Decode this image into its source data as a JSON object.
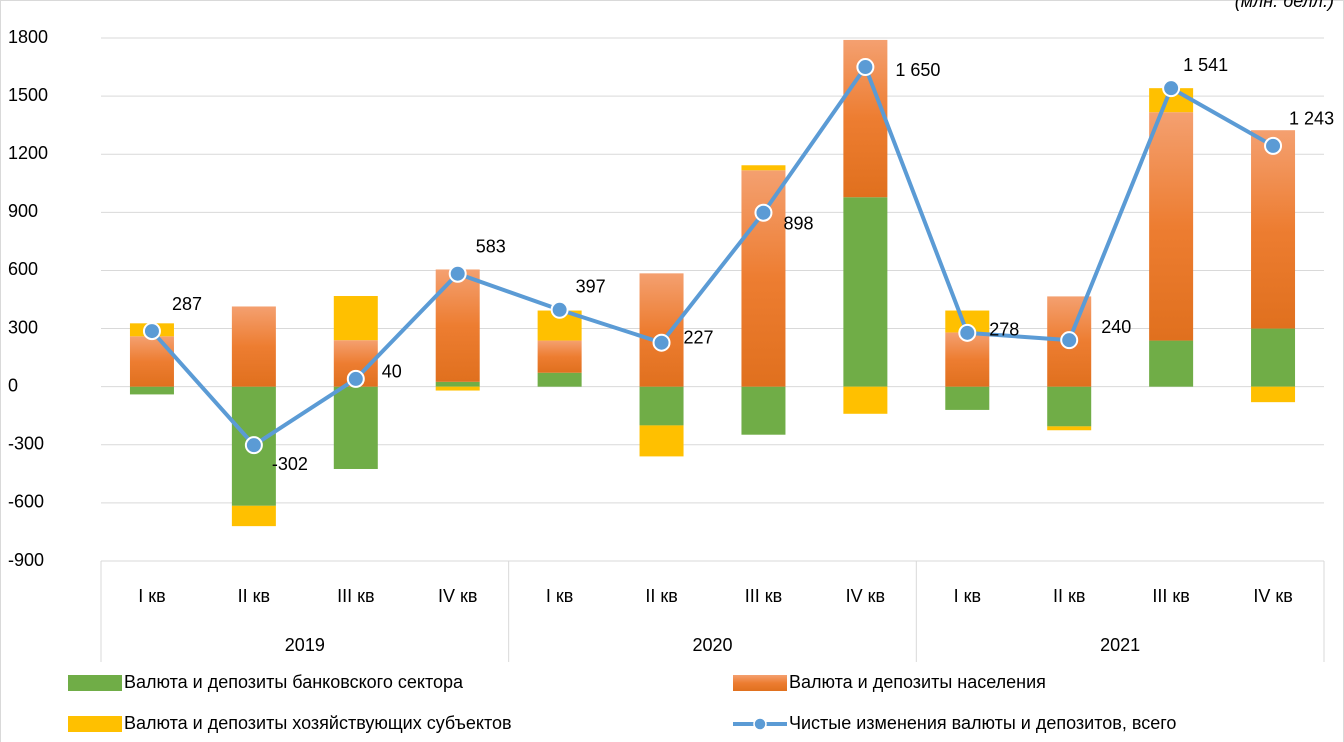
{
  "chart_data": {
    "type": "stacked-bar-line",
    "title": "(млн. белл.)",
    "groups": [
      {
        "name": "2019",
        "categories": [
          "I кв",
          "II кв",
          "III кв",
          "IV кв"
        ]
      },
      {
        "name": "2020",
        "categories": [
          "I кв",
          "II кв",
          "III кв",
          "IV кв"
        ]
      },
      {
        "name": "2021",
        "categories": [
          "I кв",
          "II кв",
          "III кв",
          "IV кв"
        ]
      }
    ],
    "ylim": [
      -900,
      1800
    ],
    "yticks": [
      -900,
      -600,
      -300,
      0,
      300,
      600,
      900,
      1200,
      1500,
      1800
    ],
    "grid": true,
    "series": [
      {
        "name": "Валюта и депозиты банковского сектора",
        "color": "#70ad47",
        "kind": "bar",
        "values": [
          -40,
          -615,
          -425,
          25,
          72,
          -200,
          -248,
          978,
          -120,
          -205,
          238,
          300
        ]
      },
      {
        "name": "Валюта и депозиты населения",
        "color": "#ed7d31",
        "kind": "bar",
        "values": [
          260,
          414,
          240,
          580,
          166,
          585,
          1117,
          812,
          280,
          466,
          1179,
          1024
        ]
      },
      {
        "name": "Валюта и депозиты хозяйствующих субъектов",
        "color": "#ffc000",
        "kind": "bar",
        "values": [
          67,
          -105,
          228,
          -20,
          155,
          -160,
          26,
          -140,
          113,
          -20,
          124,
          -80
        ]
      },
      {
        "name": "Чистые изменения валюты и депозитов, всего",
        "color": "#5b9bd5",
        "kind": "line",
        "values": [
          287,
          -302,
          40,
          583,
          397,
          227,
          898,
          1650,
          278,
          240,
          1541,
          1243
        ],
        "value_labels": [
          "287",
          "-302",
          "40",
          "583",
          "397",
          "227",
          "898",
          "1 650",
          "278",
          "240",
          "1 541",
          "1 243"
        ]
      }
    ]
  }
}
